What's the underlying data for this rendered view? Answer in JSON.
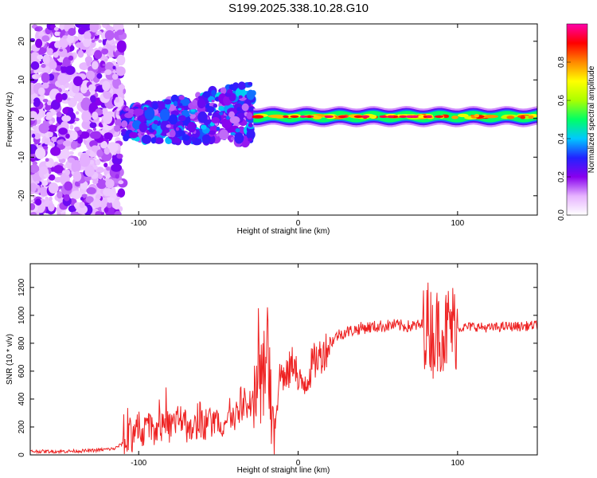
{
  "title": "S199.2025.338.10.28.G10",
  "chart_data": [
    {
      "type": "heatmap",
      "title": "S199.2025.338.10.28.G10",
      "xlabel": "Height of straight line (km)",
      "ylabel": "Frequency (Hz)",
      "xlim": [
        -168,
        150
      ],
      "ylim": [
        -25,
        24.5
      ],
      "x_ticks": [
        "-100",
        "0",
        "100"
      ],
      "x_tick_values": [
        -100,
        0,
        100
      ],
      "y_ticks": [
        "-20",
        "-10",
        "0",
        "10",
        "20"
      ],
      "y_tick_values": [
        -20,
        -10,
        0,
        10,
        20
      ],
      "colorbar": {
        "label": "Normalized spectral amplitude",
        "range": [
          0.0,
          1.0
        ],
        "ticks": [
          "0.0",
          "0.2",
          "0.4",
          "0.6",
          "0.8"
        ],
        "tick_values": [
          0.0,
          0.2,
          0.4,
          0.6,
          0.8
        ],
        "colors": [
          "#ffffff",
          "#e6b3ff",
          "#8800ee",
          "#2222ff",
          "#00c8ff",
          "#00ff66",
          "#aaff00",
          "#ffff00",
          "#ff8800",
          "#ff0000",
          "#ff00aa"
        ]
      },
      "regions": [
        {
          "x": [
            -168,
            -110
          ],
          "freq": [
            -25,
            24.5
          ],
          "amplitude": [
            0.0,
            0.15
          ],
          "description": "noise"
        },
        {
          "x": [
            -110,
            -28
          ],
          "freq": [
            -8,
            10
          ],
          "amplitude": [
            0.1,
            0.35
          ],
          "description": "scatter"
        },
        {
          "x": [
            -28,
            150
          ],
          "freq": [
            -2,
            2
          ],
          "amplitude": [
            0.3,
            0.95
          ],
          "center_freq_hz": 0.5
        }
      ]
    },
    {
      "type": "line",
      "xlabel": "Height of straight line (km)",
      "ylabel": "SNR (10 * v/v)",
      "xlim": [
        -168,
        150
      ],
      "ylim": [
        0,
        1370
      ],
      "x_ticks": [
        "-100",
        "0",
        "100"
      ],
      "x_tick_values": [
        -100,
        0,
        100
      ],
      "y_ticks": [
        "0",
        "200",
        "400",
        "600",
        "800",
        "1000",
        "1200"
      ],
      "y_tick_values": [
        0,
        200,
        400,
        600,
        800,
        1000,
        1200
      ],
      "series": [
        {
          "name": "SNR",
          "color": "#ee2222",
          "x": [
            -168,
            -150,
            -130,
            -115,
            -105,
            -95,
            -85,
            -75,
            -65,
            -55,
            -45,
            -35,
            -28,
            -24,
            -21,
            -19,
            -17,
            -15,
            -12,
            -10,
            -8,
            -5,
            -2,
            0,
            3,
            6,
            9,
            12,
            15,
            20,
            25,
            30,
            40,
            50,
            60,
            70,
            78,
            82,
            85,
            88,
            90,
            92,
            95,
            98,
            100,
            110,
            120,
            130,
            140,
            150
          ],
          "values": [
            25,
            25,
            30,
            45,
            120,
            180,
            200,
            200,
            210,
            230,
            240,
            280,
            360,
            430,
            620,
            780,
            320,
            170,
            540,
            600,
            520,
            620,
            700,
            480,
            520,
            560,
            650,
            690,
            720,
            800,
            860,
            880,
            910,
            920,
            930,
            920,
            930,
            940,
            850,
            900,
            920,
            860,
            940,
            920,
            910,
            920,
            910,
            920,
            920,
            930
          ]
        }
      ]
    }
  ]
}
